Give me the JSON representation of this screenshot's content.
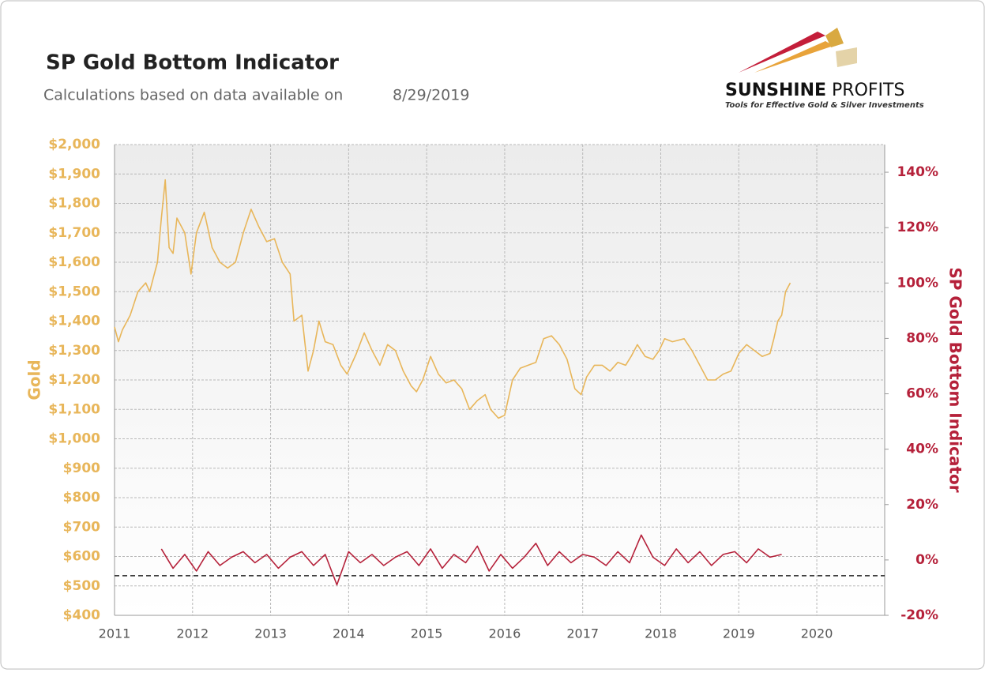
{
  "chart_data": {
    "type": "line",
    "title": "SP Gold Bottom Indicator",
    "subtitle": "Calculations based on data available on",
    "date": "8/29/2019",
    "logo": {
      "brand_bold": "SUNSHINE",
      "brand_light": "PROFITS",
      "tagline": "Tools for Effective Gold & Silver Investments"
    },
    "y_label": "Gold",
    "y2_label": "SP Gold Bottom Indicator",
    "xlim": [
      2011,
      2020.87
    ],
    "xticks": [
      2011,
      2012,
      2013,
      2014,
      2015,
      2016,
      2017,
      2018,
      2019,
      2020
    ],
    "ylim": [
      400,
      2000
    ],
    "yticks": [
      {
        "value": 400,
        "label": "$400"
      },
      {
        "value": 500,
        "label": "$500"
      },
      {
        "value": 600,
        "label": "$600"
      },
      {
        "value": 700,
        "label": "$700"
      },
      {
        "value": 800,
        "label": "$800"
      },
      {
        "value": 900,
        "label": "$900"
      },
      {
        "value": 1000,
        "label": "$1,000"
      },
      {
        "value": 1100,
        "label": "$1,100"
      },
      {
        "value": 1200,
        "label": "$1,200"
      },
      {
        "value": 1300,
        "label": "$1,300"
      },
      {
        "value": 1400,
        "label": "$1,400"
      },
      {
        "value": 1500,
        "label": "$1,500"
      },
      {
        "value": 1600,
        "label": "$1,600"
      },
      {
        "value": 1700,
        "label": "$1,700"
      },
      {
        "value": 1800,
        "label": "$1,800"
      },
      {
        "value": 1900,
        "label": "$1,900"
      },
      {
        "value": 2000,
        "label": "$2,000"
      }
    ],
    "y2lim": [
      -20,
      150
    ],
    "y2ticks": [
      {
        "value": -20,
        "label": "-20%"
      },
      {
        "value": 0,
        "label": "0%"
      },
      {
        "value": 20,
        "label": "20%"
      },
      {
        "value": 40,
        "label": "40%"
      },
      {
        "value": 60,
        "label": "60%"
      },
      {
        "value": 80,
        "label": "80%"
      },
      {
        "value": 100,
        "label": "100%"
      },
      {
        "value": 120,
        "label": "120%"
      },
      {
        "value": 140,
        "label": "140%"
      }
    ],
    "grid": true,
    "threshold": {
      "value": -5.7,
      "axis": "y2",
      "color": "#000000"
    },
    "series": [
      {
        "name": "Gold",
        "color": "#e8b65a",
        "x": [
          2011.0,
          2011.05,
          2011.1,
          2011.2,
          2011.3,
          2011.4,
          2011.45,
          2011.55,
          2011.6,
          2011.65,
          2011.7,
          2011.75,
          2011.8,
          2011.9,
          2011.98,
          2012.05,
          2012.15,
          2012.25,
          2012.35,
          2012.45,
          2012.55,
          2012.65,
          2012.75,
          2012.85,
          2012.95,
          2013.05,
          2013.15,
          2013.25,
          2013.3,
          2013.4,
          2013.48,
          2013.55,
          2013.62,
          2013.7,
          2013.8,
          2013.9,
          2013.98,
          2014.1,
          2014.2,
          2014.3,
          2014.4,
          2014.5,
          2014.6,
          2014.7,
          2014.8,
          2014.87,
          2014.95,
          2015.05,
          2015.15,
          2015.25,
          2015.35,
          2015.45,
          2015.55,
          2015.65,
          2015.75,
          2015.82,
          2015.92,
          2016.0,
          2016.1,
          2016.2,
          2016.3,
          2016.4,
          2016.5,
          2016.6,
          2016.7,
          2016.8,
          2016.9,
          2016.98,
          2017.05,
          2017.15,
          2017.25,
          2017.35,
          2017.45,
          2017.55,
          2017.62,
          2017.7,
          2017.8,
          2017.9,
          2017.98,
          2018.05,
          2018.15,
          2018.3,
          2018.4,
          2018.5,
          2018.6,
          2018.7,
          2018.8,
          2018.9,
          2019.0,
          2019.1,
          2019.2,
          2019.3,
          2019.4,
          2019.45,
          2019.5,
          2019.55,
          2019.6,
          2019.66
        ],
        "values": [
          1380,
          1330,
          1370,
          1420,
          1500,
          1530,
          1500,
          1600,
          1750,
          1880,
          1650,
          1630,
          1750,
          1700,
          1560,
          1700,
          1770,
          1650,
          1600,
          1580,
          1600,
          1700,
          1780,
          1720,
          1670,
          1680,
          1600,
          1560,
          1400,
          1420,
          1230,
          1300,
          1400,
          1330,
          1320,
          1250,
          1220,
          1290,
          1360,
          1300,
          1250,
          1320,
          1300,
          1230,
          1180,
          1160,
          1200,
          1280,
          1220,
          1190,
          1200,
          1170,
          1100,
          1130,
          1150,
          1100,
          1070,
          1080,
          1200,
          1240,
          1250,
          1260,
          1340,
          1350,
          1320,
          1270,
          1170,
          1150,
          1210,
          1250,
          1250,
          1230,
          1260,
          1250,
          1280,
          1320,
          1280,
          1270,
          1300,
          1340,
          1330,
          1340,
          1300,
          1250,
          1200,
          1200,
          1220,
          1230,
          1290,
          1320,
          1300,
          1280,
          1290,
          1340,
          1400,
          1420,
          1500,
          1530
        ]
      },
      {
        "name": "SP Gold Bottom Indicator",
        "color": "#b5213a",
        "axis": "y2",
        "x": [
          2011.6,
          2011.75,
          2011.9,
          2012.05,
          2012.2,
          2012.35,
          2012.5,
          2012.65,
          2012.8,
          2012.95,
          2013.1,
          2013.25,
          2013.4,
          2013.55,
          2013.7,
          2013.85,
          2014.0,
          2014.15,
          2014.3,
          2014.45,
          2014.6,
          2014.75,
          2014.9,
          2015.05,
          2015.2,
          2015.35,
          2015.5,
          2015.65,
          2015.8,
          2015.95,
          2016.1,
          2016.25,
          2016.4,
          2016.55,
          2016.7,
          2016.85,
          2017.0,
          2017.15,
          2017.3,
          2017.45,
          2017.6,
          2017.75,
          2017.9,
          2018.05,
          2018.2,
          2018.35,
          2018.5,
          2018.65,
          2018.8,
          2018.95,
          2019.1,
          2019.25,
          2019.4,
          2019.55
        ],
        "values": [
          4,
          -3,
          2,
          -4,
          3,
          -2,
          1,
          3,
          -1,
          2,
          -3,
          1,
          3,
          -2,
          2,
          -9,
          3,
          -1,
          2,
          -2,
          1,
          3,
          -2,
          4,
          -3,
          2,
          -1,
          5,
          -4,
          2,
          -3,
          1,
          6,
          -2,
          3,
          -1,
          2,
          1,
          -2,
          3,
          -1,
          9,
          1,
          -2,
          4,
          -1,
          3,
          -2,
          2,
          3,
          -1,
          4,
          1,
          2
        ]
      }
    ]
  }
}
